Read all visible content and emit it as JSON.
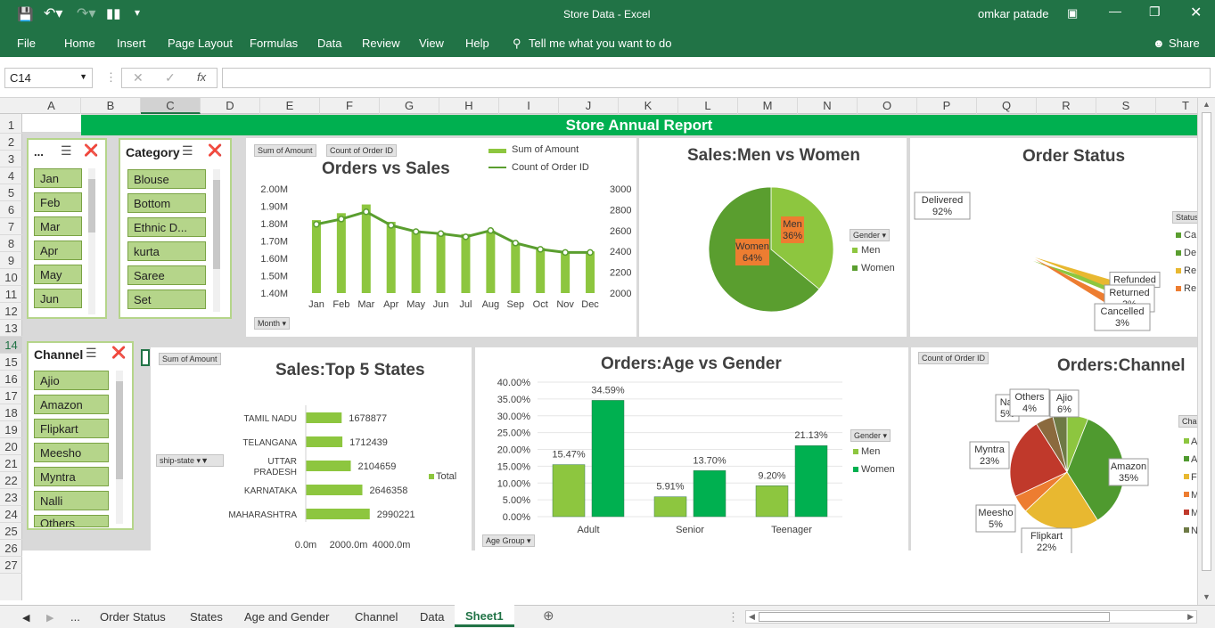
{
  "window": {
    "title": "Store Data  -  Excel",
    "user": "omkar patade"
  },
  "ribbon": {
    "tabs": [
      "File",
      "Home",
      "Insert",
      "Page Layout",
      "Formulas",
      "Data",
      "Review",
      "View",
      "Help"
    ],
    "tell_me": "Tell me what you want to do",
    "share": "Share"
  },
  "formula_bar": {
    "name_box": "C14",
    "fx": "fx",
    "value": ""
  },
  "columns": [
    "A",
    "B",
    "C",
    "D",
    "E",
    "F",
    "G",
    "H",
    "I",
    "J",
    "K",
    "L",
    "M",
    "N",
    "O",
    "P",
    "Q",
    "R",
    "S",
    "T"
  ],
  "rows": [
    "1",
    "2",
    "3",
    "4",
    "5",
    "6",
    "7",
    "8",
    "9",
    "10",
    "11",
    "12",
    "13",
    "14",
    "15",
    "16",
    "17",
    "18",
    "19",
    "20",
    "21",
    "22",
    "23",
    "24",
    "25",
    "26",
    "27"
  ],
  "report_title": "Store Annual Report",
  "slicers": {
    "month": {
      "title": "...",
      "items": [
        "Jan",
        "Feb",
        "Mar",
        "Apr",
        "May",
        "Jun"
      ]
    },
    "category": {
      "title": "Category",
      "items": [
        "Blouse",
        "Bottom",
        "Ethnic D...",
        "kurta",
        "Saree",
        "Set"
      ]
    },
    "channel": {
      "title": "Channel",
      "items": [
        "Ajio",
        "Amazon",
        "Flipkart",
        "Meesho",
        "Myntra",
        "Nalli",
        "Others"
      ]
    }
  },
  "orders_vs_sales": {
    "title": "Orders vs Sales",
    "field_btns": [
      "Sum of Amount",
      "Count of Order ID"
    ],
    "axis_btn": "Month",
    "legend": [
      "Sum of Amount",
      "Count of Order ID"
    ],
    "chart_data": {
      "type": "bar",
      "categories": [
        "Jan",
        "Feb",
        "Mar",
        "Apr",
        "May",
        "Jun",
        "Jul",
        "Aug",
        "Sep",
        "Oct",
        "Nov",
        "Dec"
      ],
      "series": [
        {
          "name": "Sum of Amount",
          "values": [
            1.82,
            1.86,
            1.91,
            1.81,
            1.76,
            1.75,
            1.74,
            1.76,
            1.69,
            1.66,
            1.64,
            1.64
          ]
        },
        {
          "name": "Count of Order ID",
          "values": [
            2660,
            2710,
            2780,
            2650,
            2590,
            2570,
            2540,
            2600,
            2480,
            2420,
            2390,
            2390
          ]
        }
      ],
      "y_ticks": [
        "2.00M",
        "1.90M",
        "1.80M",
        "1.70M",
        "1.60M",
        "1.50M",
        "1.40M"
      ],
      "y2_ticks": [
        "3000",
        "2800",
        "2600",
        "2400",
        "2200",
        "2000"
      ],
      "ylim": [
        1.4,
        2.0
      ],
      "y2lim": [
        2000,
        3000
      ]
    }
  },
  "men_women": {
    "title": "Sales:Men vs Women",
    "legend_btn": "Gender",
    "legend": [
      "Men",
      "Women"
    ],
    "chart_data": {
      "type": "pie",
      "labels": [
        "Men",
        "Women"
      ],
      "values": [
        36,
        64
      ],
      "data_labels": [
        "Men\n36%",
        "Women\n64%"
      ]
    }
  },
  "order_status": {
    "title": "Order Status",
    "legend_title": "Status",
    "legend": [
      "Ca",
      "De",
      "Re",
      "Re"
    ],
    "chart_data": {
      "type": "pie",
      "labels": [
        "Delivered",
        "Refunded",
        "Returned",
        "Cancelled"
      ],
      "values": [
        92,
        1,
        3,
        3
      ],
      "data_labels": [
        "Delivered\n92%",
        "Refunded",
        "Returned\n3%",
        "Cancelled\n3%"
      ]
    }
  },
  "top_states": {
    "title": "Sales:Top 5 States",
    "field_btn": "Sum of Amount",
    "filter_btn": "ship-state",
    "legend": [
      "Total"
    ],
    "chart_data": {
      "type": "bar",
      "orientation": "horizontal",
      "categories": [
        "TAMIL NADU",
        "TELANGANA",
        "UTTAR PRADESH",
        "KARNATAKA",
        "MAHARASHTRA"
      ],
      "values": [
        1678877,
        1712439,
        2104659,
        2646358,
        2990221
      ],
      "x_ticks": [
        "0.0m",
        "2000.0m",
        "4000.0m"
      ]
    }
  },
  "age_gender": {
    "title": "Orders:Age vs Gender",
    "axis_btn": "Age Group",
    "legend_btn": "Gender",
    "legend": [
      "Men",
      "Women"
    ],
    "chart_data": {
      "type": "bar",
      "categories": [
        "Adult",
        "Senior",
        "Teenager"
      ],
      "series": [
        {
          "name": "Men",
          "values": [
            15.47,
            5.91,
            9.2
          ],
          "labels": [
            "15.47%",
            "5.91%",
            "9.20%"
          ]
        },
        {
          "name": "Women",
          "values": [
            34.59,
            13.7,
            21.13
          ],
          "labels": [
            "34.59%",
            "13.70%",
            "21.13%"
          ]
        }
      ],
      "y_ticks": [
        "40.00%",
        "35.00%",
        "30.00%",
        "25.00%",
        "20.00%",
        "15.00%",
        "10.00%",
        "5.00%",
        "0.00%"
      ],
      "ylim": [
        0,
        40
      ]
    }
  },
  "channel_chart": {
    "title": "Orders:Channel",
    "field_btn": "Count of Order ID",
    "legend_title": "Cha",
    "legend": [
      "A",
      "A",
      "F",
      "M",
      "M",
      "N"
    ],
    "chart_data": {
      "type": "pie",
      "labels": [
        "Ajio",
        "Amazon",
        "Flipkart",
        "Meesho",
        "Myntra",
        "Nalli",
        "Others"
      ],
      "values": [
        6,
        35,
        22,
        5,
        23,
        5,
        4
      ],
      "data_labels": [
        "Ajio\n6%",
        "Amazon\n35%",
        "Flipkart\n22%",
        "Meesho\n5%",
        "Myntra\n23%",
        "Nal\n5%",
        "Others\n4%"
      ]
    }
  },
  "sheet_tabs": [
    "...",
    "Order Status",
    "States",
    "Age and Gender",
    "Channel",
    "Data",
    "Sheet1"
  ],
  "colors": {
    "excel_green": "#217346",
    "bright_green": "#00b050",
    "light_green": "#8dc63f",
    "mid_green": "#5a9e2f",
    "orange": "#ed7d31",
    "gold": "#e8b830",
    "red": "#c0392b"
  }
}
